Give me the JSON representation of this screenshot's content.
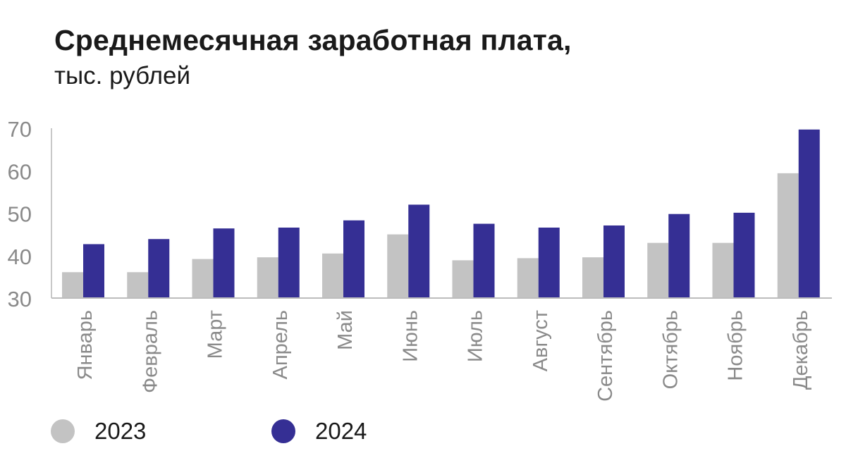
{
  "chart_data": {
    "type": "bar",
    "title": "Среднемесячная заработная плата,",
    "subtitle": "тыс. рублей",
    "categories": [
      "Январь",
      "Февраль",
      "Март",
      "Апрель",
      "Май",
      "Июнь",
      "Июль",
      "Август",
      "Сентябрь",
      "Октябрь",
      "Ноябрь",
      "Декабрь"
    ],
    "series": [
      {
        "name": "2023",
        "color": "#c3c3c3",
        "values": [
          36.1,
          36.1,
          39.2,
          39.6,
          40.5,
          45.0,
          38.9,
          39.4,
          39.6,
          43.0,
          43.0,
          59.4
        ]
      },
      {
        "name": "2024",
        "color": "#352f94",
        "values": [
          42.7,
          43.9,
          46.4,
          46.6,
          48.3,
          52.0,
          47.5,
          46.6,
          47.1,
          49.8,
          50.1,
          69.7
        ]
      }
    ],
    "yticks": [
      "30",
      "40",
      "50",
      "60",
      "70"
    ],
    "ylim": [
      30,
      70
    ],
    "xlabel": "",
    "ylabel": "",
    "legend_position": "bottom-left"
  }
}
